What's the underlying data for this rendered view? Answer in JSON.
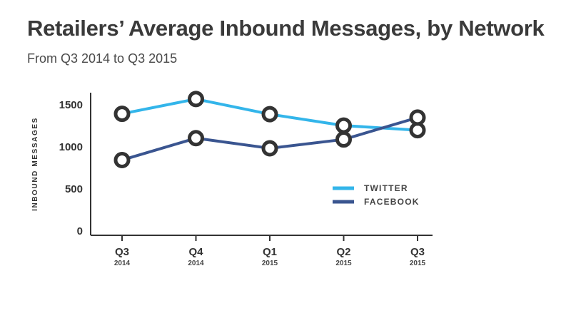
{
  "chart_data": {
    "type": "line",
    "title": "Retailers’ Average Inbound Messages, by Network",
    "subtitle": "From Q3 2014 to Q3 2015",
    "ylabel": "INBOUND MESSAGES",
    "xlabel": "",
    "categories": [
      {
        "label": "Q3",
        "year": "2014"
      },
      {
        "label": "Q4",
        "year": "2014"
      },
      {
        "label": "Q1",
        "year": "2015"
      },
      {
        "label": "Q2",
        "year": "2015"
      },
      {
        "label": "Q3",
        "year": "2015"
      }
    ],
    "ylim": [
      0,
      1500
    ],
    "yticks": [
      0,
      500,
      1000,
      1500
    ],
    "grid": false,
    "legend": "right",
    "series": [
      {
        "name": "TWITTER",
        "color": "#33b5ea",
        "values": [
          1385,
          1560,
          1380,
          1245,
          1190
        ]
      },
      {
        "name": "FACEBOOK",
        "color": "#3a5590",
        "values": [
          835,
          1095,
          975,
          1080,
          1340
        ]
      }
    ],
    "marker": {
      "stroke": "#333333",
      "fill": "#ffffff"
    },
    "axis_color": "#333333"
  }
}
